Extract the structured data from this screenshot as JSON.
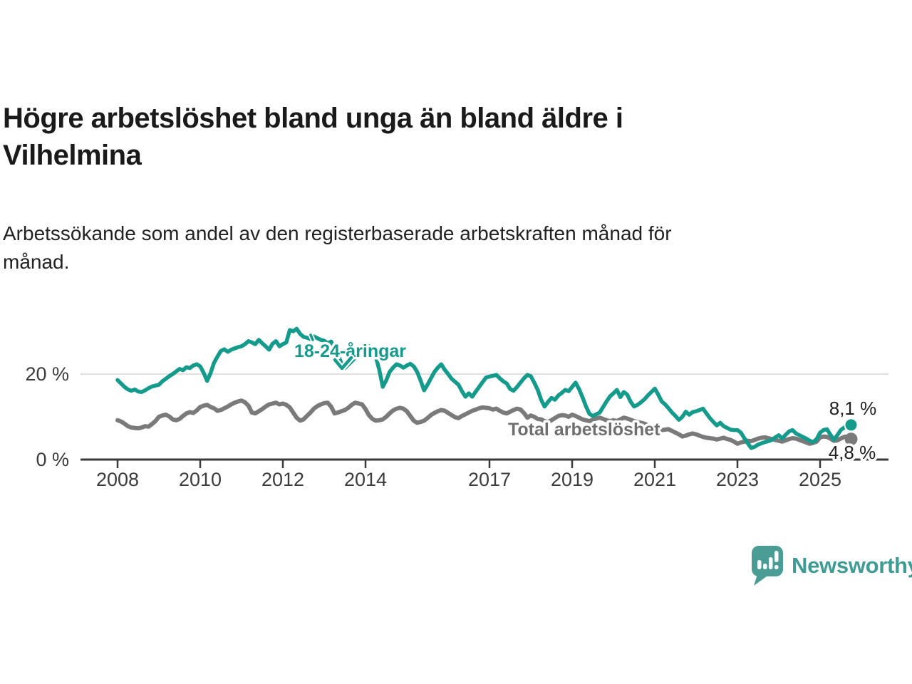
{
  "header": {
    "title_line1": "Högre arbetslöshet bland unga än bland äldre i",
    "title_line2": "Vilhelmina",
    "subtitle_line1": "Arbetssökande som andel av den registerbaserade arbetskraften månad för",
    "subtitle_line2": "månad."
  },
  "chart_data": {
    "type": "line",
    "title": "Högre arbetslöshet bland unga än bland äldre i Vilhelmina",
    "subtitle": "Arbetssökande som andel av den registerbaserade arbetskraften månad för månad.",
    "unit": "%",
    "x_start_year": 2008,
    "x_interval_months": 1,
    "xlim": [
      2007.1,
      2026.7
    ],
    "ylim": [
      0,
      33
    ],
    "grid": "y-20-only",
    "x_ticks": [
      {
        "year": 2008,
        "label": "2008"
      },
      {
        "year": 2010,
        "label": "2010"
      },
      {
        "year": 2012,
        "label": "2012"
      },
      {
        "year": 2014,
        "label": "2014"
      },
      {
        "year": 2017,
        "label": "2017"
      },
      {
        "year": 2019,
        "label": "2019"
      },
      {
        "year": 2021,
        "label": "2021"
      },
      {
        "year": 2023,
        "label": "2023"
      },
      {
        "year": 2025,
        "label": "2025"
      }
    ],
    "y_ticks": [
      {
        "value": 0,
        "label": "0 %",
        "style": "axis"
      },
      {
        "value": 20,
        "label": "20 %",
        "style": "grid"
      }
    ],
    "series": [
      {
        "name": "Total arbetslöshet",
        "color": "#7a7a7a",
        "label_color": "#6f6f6f",
        "end_label": "4,8 %",
        "end_value": 4.8,
        "values": [
          9.2,
          8.9,
          8.4,
          7.8,
          7.5,
          7.4,
          7.3,
          7.5,
          7.8,
          7.7,
          8.3,
          9.0,
          10.0,
          10.3,
          10.5,
          10.1,
          9.4,
          9.2,
          9.5,
          10.2,
          10.8,
          11.1,
          10.9,
          11.5,
          12.3,
          12.6,
          12.8,
          12.3,
          12.0,
          11.4,
          11.6,
          12.0,
          12.4,
          12.9,
          13.3,
          13.6,
          13.8,
          13.4,
          12.6,
          11.0,
          10.8,
          11.3,
          11.8,
          12.4,
          12.9,
          13.1,
          13.3,
          12.9,
          13.1,
          12.8,
          12.2,
          11.0,
          9.8,
          9.1,
          9.4,
          10.2,
          11.0,
          11.9,
          12.5,
          12.9,
          13.2,
          13.3,
          12.4,
          10.8,
          11.0,
          11.3,
          11.6,
          12.1,
          12.8,
          13.3,
          13.1,
          12.9,
          11.8,
          10.4,
          9.5,
          9.1,
          9.2,
          9.4,
          10.0,
          10.8,
          11.5,
          11.9,
          12.1,
          11.9,
          11.3,
          10.2,
          9.1,
          8.6,
          8.8,
          9.1,
          9.7,
          10.4,
          10.9,
          11.3,
          11.6,
          11.4,
          10.9,
          10.4,
          9.9,
          9.7,
          10.2,
          10.6,
          11.0,
          11.4,
          11.7,
          12.0,
          12.2,
          12.1,
          12.0,
          11.7,
          11.9,
          11.4,
          11.0,
          10.8,
          11.2,
          11.6,
          11.9,
          11.7,
          10.9,
          9.8,
          10.3,
          10.0,
          9.5,
          9.4,
          9.0,
          8.8,
          9.2,
          9.7,
          10.2,
          10.4,
          10.3,
          10.0,
          10.5,
          10.2,
          9.8,
          9.4,
          9.2,
          9.0,
          9.3,
          9.6,
          9.8,
          9.5,
          9.2,
          9.0,
          9.2,
          9.0,
          9.4,
          9.8,
          9.6,
          9.3,
          9.0,
          8.8,
          8.6,
          8.4,
          8.0,
          7.6,
          7.4,
          7.1,
          6.9,
          7.0,
          7.1,
          6.7,
          6.3,
          5.9,
          5.4,
          5.6,
          5.9,
          6.1,
          5.9,
          5.6,
          5.3,
          5.1,
          5.0,
          4.9,
          4.7,
          4.9,
          5.1,
          4.8,
          4.6,
          4.2,
          3.7,
          4.0,
          4.2,
          4.4,
          4.3,
          4.6,
          4.9,
          5.1,
          5.2,
          5.0,
          4.8,
          4.6,
          4.4,
          4.2,
          4.5,
          4.8,
          5.0,
          4.9,
          4.6,
          4.3,
          4.0,
          3.7,
          3.9,
          4.2,
          5.2,
          5.4,
          5.3,
          4.9,
          4.4,
          4.5,
          4.9,
          5.3,
          5.4,
          4.8
        ]
      },
      {
        "name": "18-24-åringar",
        "color": "#149b8c",
        "label_color": "#149b8c",
        "end_label": "8,1 %",
        "end_value": 8.1,
        "values": [
          18.6,
          17.8,
          17.0,
          16.4,
          16.1,
          16.4,
          15.9,
          15.8,
          16.2,
          16.7,
          17.1,
          17.3,
          17.5,
          18.3,
          18.9,
          19.5,
          20.0,
          20.6,
          21.2,
          20.9,
          21.6,
          21.4,
          22.0,
          22.3,
          21.8,
          20.3,
          18.4,
          20.2,
          22.6,
          24.1,
          25.4,
          25.8,
          25.2,
          25.7,
          26.0,
          26.3,
          26.5,
          27.0,
          27.7,
          27.4,
          27.0,
          28.0,
          27.2,
          26.5,
          25.7,
          27.1,
          27.7,
          26.5,
          27.0,
          27.4,
          30.3,
          30.0,
          30.6,
          29.4,
          28.7,
          28.5,
          28.2,
          28.8,
          28.4,
          28.0,
          27.8,
          27.2,
          27.6,
          26.0,
          24.5,
          22.5,
          21.4,
          22.2,
          23.0,
          23.8,
          24.4,
          25.6,
          26.0,
          26.5,
          25.8,
          24.0,
          21.0,
          17.0,
          18.5,
          20.5,
          21.5,
          22.3,
          22.0,
          21.5,
          22.0,
          22.4,
          21.8,
          20.5,
          18.5,
          16.2,
          17.5,
          19.0,
          20.5,
          21.5,
          22.3,
          21.0,
          20.0,
          18.9,
          18.2,
          17.5,
          16.0,
          14.7,
          15.5,
          14.7,
          15.9,
          17.0,
          18.1,
          19.2,
          19.4,
          19.6,
          19.8,
          19.0,
          18.3,
          17.8,
          16.5,
          16.1,
          17.0,
          18.0,
          19.0,
          19.8,
          19.5,
          18.0,
          16.3,
          14.0,
          12.4,
          13.5,
          14.4,
          14.0,
          15.0,
          15.6,
          16.3,
          16.0,
          17.0,
          18.0,
          16.5,
          14.6,
          12.5,
          10.7,
          10.2,
          10.6,
          11.0,
          12.3,
          13.6,
          14.8,
          15.5,
          16.3,
          14.6,
          15.8,
          15.2,
          13.5,
          12.4,
          12.8,
          13.4,
          14.1,
          15.0,
          15.8,
          16.6,
          15.2,
          13.6,
          12.9,
          12.0,
          11.0,
          10.2,
          9.3,
          10.0,
          11.2,
          10.5,
          11.1,
          11.3,
          11.6,
          11.9,
          10.8,
          9.7,
          8.8,
          8.0,
          8.6,
          7.8,
          7.4,
          7.0,
          6.9,
          6.9,
          6.3,
          5.0,
          3.8,
          2.7,
          3.0,
          3.5,
          3.8,
          4.1,
          4.3,
          4.6,
          5.2,
          5.7,
          4.9,
          5.8,
          6.6,
          6.9,
          6.1,
          5.7,
          5.3,
          4.9,
          4.4,
          4.1,
          4.8,
          6.3,
          6.9,
          7.1,
          5.8,
          4.6,
          5.7,
          6.9,
          7.5,
          8.0,
          8.1
        ]
      }
    ]
  },
  "footer": {
    "brand": "Newsworthy"
  },
  "colors": {
    "accent_teal": "#149b8c",
    "line_gray": "#7a7a7a",
    "logo_teal": "#4a9d95",
    "axis": "#3a3a3a",
    "grid": "#e0e0e0",
    "tick_text": "#3c3c3c",
    "value_text": "#222222"
  }
}
